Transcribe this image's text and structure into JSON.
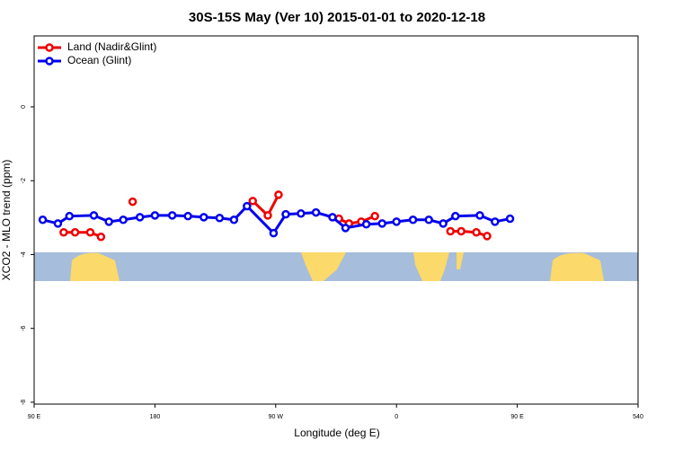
{
  "chart_data": {
    "type": "line",
    "title": "30S-15S May (Ver 10)   2015-01-01 to 2020-12-18",
    "xlabel": "Longitude (deg E)",
    "ylabel": "XCO2 - MLO trend (ppm)",
    "xlim": [
      90,
      540
    ],
    "xticks": [
      {
        "value": 90,
        "label": "90 E"
      },
      180,
      {
        "value": 270,
        "label": "90 W"
      },
      {
        "value": 360,
        "label": "0"
      },
      {
        "value": 450,
        "label": "90 E"
      },
      540
    ],
    "ylim": [
      -8.05,
      1.92
    ],
    "yticks": [
      0,
      -2,
      -4,
      -6,
      -8
    ],
    "legend": "top-left",
    "series": [
      {
        "name": "Land (Nadir&Glint)",
        "color": "#ee0000",
        "x": [
          112,
          120.5,
          131.8,
          139.8,
          null,
          163.4,
          null,
          252.9,
          264.1,
          272.1,
          null,
          317.1,
          324.6,
          333.7,
          343.9,
          null,
          400.2,
          408.2,
          419.5,
          427.5
        ],
        "values": [
          -3.4,
          -3.4,
          -3.4,
          -3.52,
          null,
          -2.57,
          null,
          -2.55,
          -2.94,
          -2.38,
          null,
          -3.03,
          -3.16,
          -3.11,
          -2.96,
          null,
          -3.37,
          -3.37,
          -3.4,
          -3.5
        ]
      },
      {
        "name": "Ocean (Glint)",
        "color": "#0000ee",
        "x": [
          96.4,
          107.7,
          116.3,
          134.5,
          145.7,
          156.4,
          168.8,
          180,
          192.9,
          204.6,
          216.4,
          228.2,
          238.9,
          248.6,
          268.4,
          277.5,
          288.8,
          300,
          312.3,
          322,
          337.5,
          349.3,
          360,
          372.3,
          384.1,
          394.8,
          403.9,
          422.1,
          433.4,
          444.6
        ],
        "values": [
          -3.06,
          -3.16,
          -2.96,
          -2.94,
          -3.11,
          -3.06,
          -2.99,
          -2.94,
          -2.94,
          -2.96,
          -2.99,
          -3.01,
          -3.06,
          -2.69,
          -3.42,
          -2.91,
          -2.89,
          -2.86,
          -2.99,
          -3.28,
          -3.18,
          -3.16,
          -3.11,
          -3.06,
          -3.06,
          -3.16,
          -2.96,
          -2.94,
          -3.11,
          -3.03
        ]
      }
    ]
  }
}
